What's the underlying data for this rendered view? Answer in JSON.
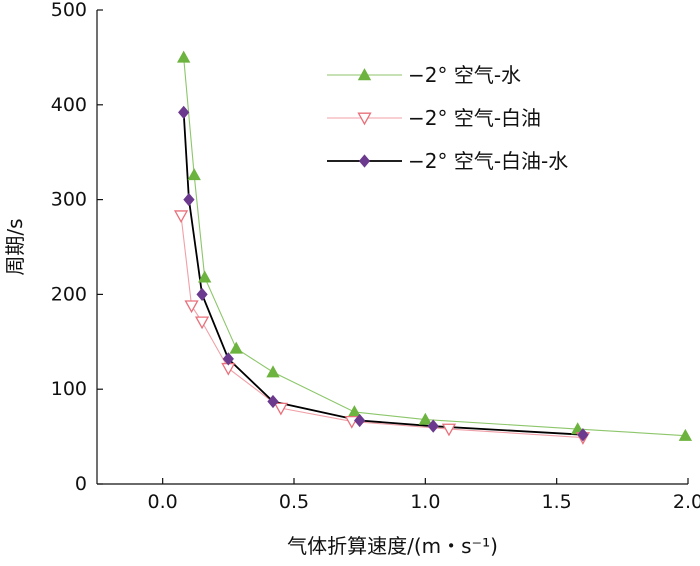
{
  "chart_data": {
    "type": "line",
    "title": "",
    "xlabel": "气体折算速度/(m・s⁻¹)",
    "ylabel": "周期/s",
    "xlim": [
      -0.25,
      2.0
    ],
    "ylim": [
      0,
      500
    ],
    "xticks": [
      0.0,
      0.5,
      1.0,
      1.5,
      2.0
    ],
    "xtick_labels": [
      "0.0",
      "0.5",
      "1.0",
      "1.5",
      "2.0"
    ],
    "yticks": [
      0,
      100,
      200,
      300,
      400,
      500
    ],
    "ytick_labels": [
      "0",
      "100",
      "200",
      "300",
      "400",
      "500"
    ],
    "grid": false,
    "legend_position": "top-right",
    "series": [
      {
        "name": "−2° 空气-水",
        "marker": "triangle-up-filled",
        "color": "#6db33f",
        "line_color": "#8cc66a",
        "x": [
          0.08,
          0.12,
          0.16,
          0.28,
          0.42,
          0.73,
          1.0,
          1.58,
          1.99
        ],
        "y": [
          450,
          326,
          218,
          143,
          118,
          76,
          68,
          58,
          51
        ]
      },
      {
        "name": "−2° 空气-白油",
        "marker": "triangle-down-open",
        "color": "#e8707a",
        "line_color": "#f0a0a8",
        "x": [
          0.07,
          0.11,
          0.15,
          0.25,
          0.45,
          0.72,
          1.09,
          1.6
        ],
        "y": [
          283,
          188,
          171,
          122,
          80,
          66,
          58,
          49
        ]
      },
      {
        "name": "−2° 空气-白油-水",
        "marker": "diamond-filled",
        "color": "#6b3a8e",
        "line_color": "#000000",
        "x": [
          0.08,
          0.1,
          0.15,
          0.25,
          0.42,
          0.75,
          1.03,
          1.6
        ],
        "y": [
          392,
          300,
          200,
          132,
          87,
          67,
          61,
          52
        ]
      }
    ]
  }
}
